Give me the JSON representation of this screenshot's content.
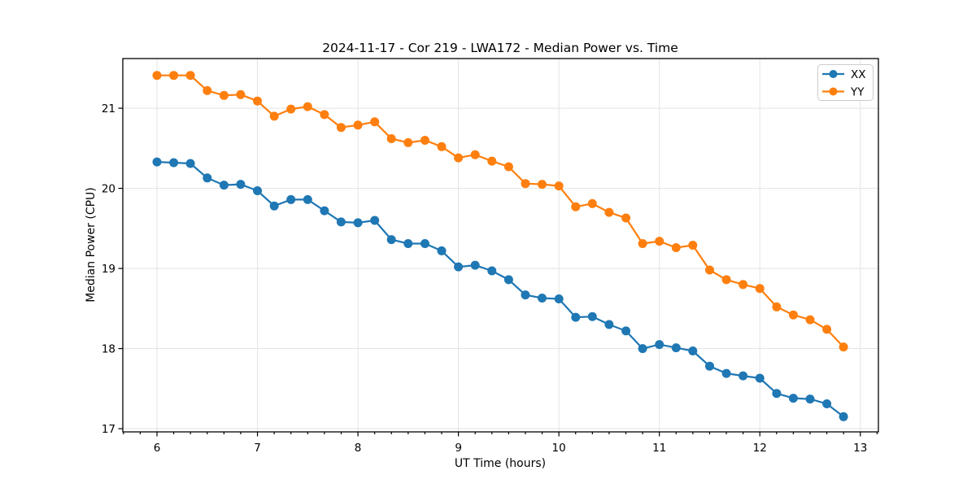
{
  "chart_data": {
    "type": "line",
    "title": "2024-11-17 - Cor 219 - LWA172 - Median Power vs. Time",
    "xlabel": "UT Time (hours)",
    "ylabel": "Median Power (CPU)",
    "xlim": [
      5.66,
      13.18
    ],
    "ylim": [
      16.96,
      21.62
    ],
    "xticks": [
      6,
      7,
      8,
      9,
      10,
      11,
      12,
      13
    ],
    "yticks": [
      17,
      18,
      19,
      20,
      21
    ],
    "x_minor_divisions": 6,
    "grid": true,
    "marker": "circle",
    "legend": {
      "position": "upper right",
      "entries": [
        "XX",
        "YY"
      ]
    },
    "x": [
      6.0,
      6.167,
      6.333,
      6.5,
      6.667,
      6.833,
      7.0,
      7.167,
      7.333,
      7.5,
      7.667,
      7.833,
      8.0,
      8.167,
      8.333,
      8.5,
      8.667,
      8.833,
      9.0,
      9.167,
      9.333,
      9.5,
      9.667,
      9.833,
      10.0,
      10.167,
      10.333,
      10.5,
      10.667,
      10.833,
      11.0,
      11.167,
      11.333,
      11.5,
      11.667,
      11.833,
      12.0,
      12.167,
      12.333,
      12.5,
      12.667,
      12.833
    ],
    "series": [
      {
        "name": "XX",
        "color": "#1f77b4",
        "values": [
          20.33,
          20.32,
          20.31,
          20.13,
          20.04,
          20.05,
          19.97,
          19.78,
          19.86,
          19.86,
          19.72,
          19.58,
          19.57,
          19.6,
          19.36,
          19.31,
          19.31,
          19.22,
          19.02,
          19.04,
          18.97,
          18.86,
          18.67,
          18.63,
          18.62,
          18.39,
          18.4,
          18.3,
          18.22,
          18.0,
          18.05,
          18.01,
          17.97,
          17.78,
          17.69,
          17.66,
          17.63,
          17.44,
          17.38,
          17.37,
          17.31,
          17.15
        ]
      },
      {
        "name": "YY",
        "color": "#ff7f0e",
        "values": [
          21.41,
          21.41,
          21.41,
          21.22,
          21.16,
          21.17,
          21.09,
          20.9,
          20.99,
          21.02,
          20.92,
          20.76,
          20.79,
          20.83,
          20.62,
          20.57,
          20.6,
          20.52,
          20.38,
          20.42,
          20.34,
          20.27,
          20.06,
          20.05,
          20.03,
          19.77,
          19.81,
          19.7,
          19.63,
          19.31,
          19.34,
          19.26,
          19.29,
          18.98,
          18.86,
          18.8,
          18.75,
          18.52,
          18.42,
          18.36,
          18.24,
          18.02
        ]
      }
    ]
  }
}
